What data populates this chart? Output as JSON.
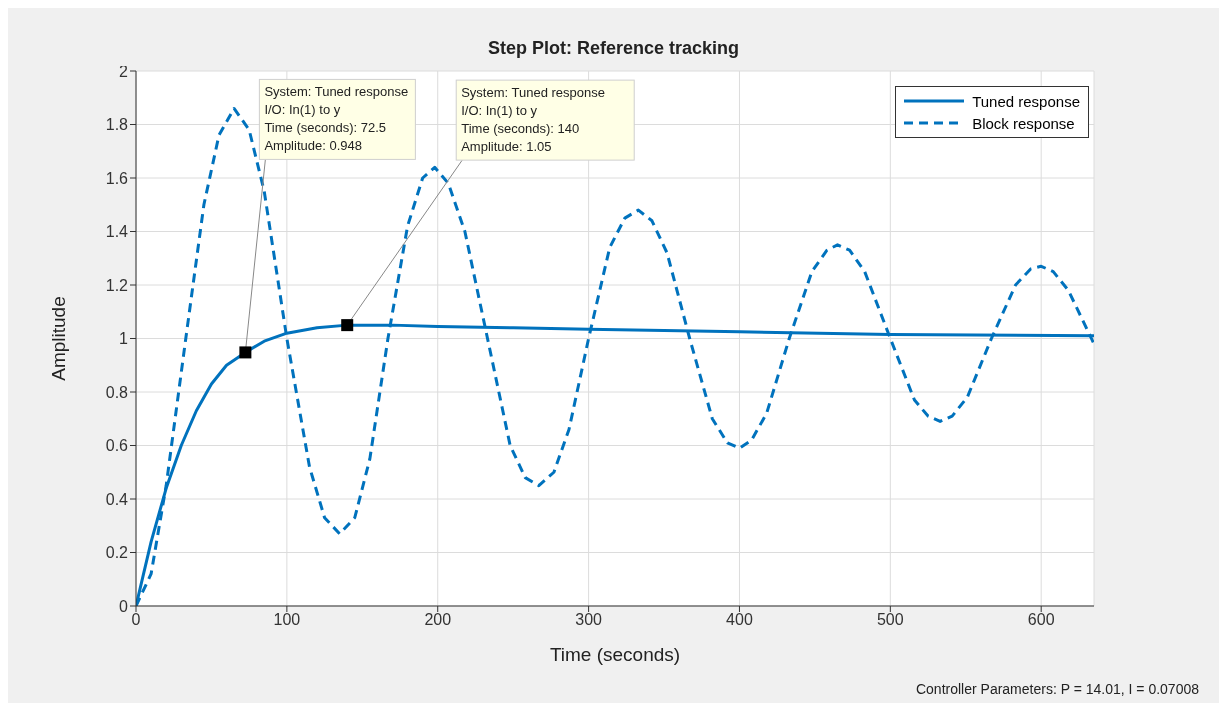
{
  "chart_data": {
    "type": "line",
    "title": "Step Plot: Reference tracking",
    "xlabel": "Time (seconds)",
    "ylabel": "Amplitude",
    "xlim": [
      0,
      635
    ],
    "xticks": [
      0,
      100,
      200,
      300,
      400,
      500,
      600
    ],
    "ylim": [
      0,
      2
    ],
    "yticks": [
      0,
      0.2,
      0.4,
      0.6,
      0.8,
      1,
      1.2,
      1.4,
      1.6,
      1.8,
      2
    ],
    "grid": true,
    "legend": "top right",
    "marker": "none",
    "series": [
      {
        "name": "Tuned response",
        "color": "#0072bd",
        "line_style": "solid",
        "x": [
          0,
          5,
          10,
          20,
          30,
          40,
          50,
          60,
          72.5,
          85,
          100,
          120,
          140,
          170,
          200,
          250,
          300,
          400,
          500,
          635
        ],
        "values": [
          0,
          0.12,
          0.24,
          0.44,
          0.6,
          0.73,
          0.83,
          0.9,
          0.948,
          0.99,
          1.02,
          1.04,
          1.05,
          1.05,
          1.045,
          1.04,
          1.035,
          1.025,
          1.015,
          1.01
        ]
      },
      {
        "name": "Block response",
        "color": "#0072bd",
        "line_style": "dashed",
        "x": [
          0,
          10,
          20,
          33,
          45,
          55,
          65,
          75,
          85,
          100,
          115,
          125,
          135,
          145,
          155,
          167,
          180,
          190,
          198,
          207,
          218,
          233,
          248,
          258,
          267,
          277,
          287,
          300,
          314,
          324,
          333,
          342,
          352,
          367,
          382,
          392,
          400,
          408,
          418,
          433,
          448,
          458,
          465,
          473,
          483,
          500,
          516,
          525,
          533,
          541,
          551,
          567,
          583,
          593,
          600,
          608,
          618,
          635
        ],
        "values": [
          0,
          0.12,
          0.45,
          1,
          1.5,
          1.76,
          1.86,
          1.78,
          1.55,
          1,
          0.52,
          0.33,
          0.27,
          0.33,
          0.55,
          1,
          1.42,
          1.6,
          1.64,
          1.58,
          1.4,
          1,
          0.6,
          0.48,
          0.45,
          0.5,
          0.66,
          1,
          1.34,
          1.45,
          1.48,
          1.44,
          1.32,
          1,
          0.7,
          0.61,
          0.59,
          0.62,
          0.72,
          1,
          1.25,
          1.33,
          1.35,
          1.33,
          1.25,
          1,
          0.77,
          0.71,
          0.69,
          0.71,
          0.78,
          1,
          1.2,
          1.26,
          1.27,
          1.25,
          1.18,
          0.98
        ]
      }
    ],
    "annotations": [
      {
        "text": "System: Tuned response\nI/O: In(1) to y\nTime (seconds): 72.5\nAmplitude: 0.948",
        "x": 72.5,
        "y": 0.948
      },
      {
        "text": "System: Tuned response\nI/O: In(1) to y\nTime (seconds): 140\nAmplitude: 1.05",
        "x": 140,
        "y": 1.05
      },
      "Controller Parameters: P = 14.01, I = 0.07008"
    ]
  }
}
